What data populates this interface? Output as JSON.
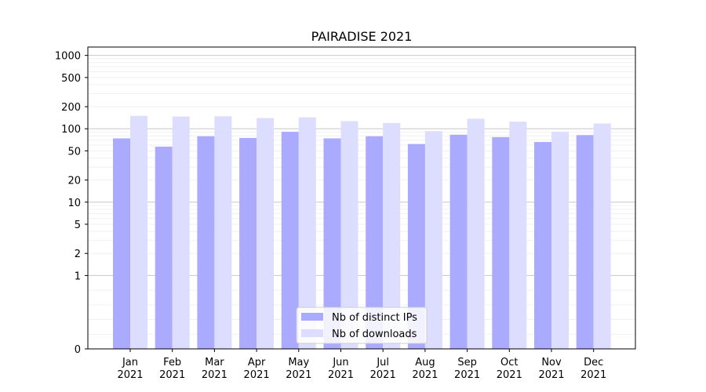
{
  "chart_data": {
    "type": "bar",
    "title": "PAIRADISE 2021",
    "xlabel": "",
    "ylabel": "",
    "yscale": "symlog",
    "ylim": [
      0,
      1300
    ],
    "yticks": [
      "0",
      "1",
      "2",
      "5",
      "10",
      "20",
      "50",
      "100",
      "200",
      "500",
      "1000"
    ],
    "categories": [
      "Jan\n2021",
      "Feb\n2021",
      "Mar\n2021",
      "Apr\n2021",
      "May\n2021",
      "Jun\n2021",
      "Jul\n2021",
      "Aug\n2021",
      "Sep\n2021",
      "Oct\n2021",
      "Nov\n2021",
      "Dec\n2021"
    ],
    "series": [
      {
        "name": "Nb of distinct IPs",
        "color": "#aaaaff",
        "values": [
          74,
          57,
          79,
          75,
          91,
          74,
          79,
          62,
          83,
          77,
          66,
          82
        ]
      },
      {
        "name": "Nb of downloads",
        "color": "#ddddff",
        "values": [
          150,
          147,
          148,
          140,
          143,
          127,
          120,
          93,
          137,
          125,
          91,
          118
        ]
      }
    ],
    "legend": "lower center",
    "grid": true
  }
}
